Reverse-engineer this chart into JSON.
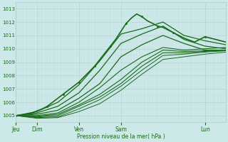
{
  "xlabel": "Pression niveau de la mer( hPa )",
  "bg_color": "#cce8e8",
  "grid_color_major": "#b0cccc",
  "grid_color_minor": "#c4dddd",
  "line_color": "#1a6b1a",
  "tick_label_color": "#1a6b1a",
  "ylim": [
    1004.5,
    1013.5
  ],
  "yticks": [
    1005,
    1006,
    1007,
    1008,
    1009,
    1010,
    1011,
    1012,
    1013
  ],
  "day_labels": [
    "Jeu",
    "Dim",
    "Ven",
    "Sam",
    "Lun"
  ],
  "day_positions": [
    0,
    24,
    72,
    120,
    216
  ],
  "xlim": [
    0,
    240
  ],
  "series": [
    {
      "x": [
        0,
        6,
        12,
        18,
        24,
        30,
        36,
        42,
        48,
        54,
        60,
        66,
        72,
        78,
        84,
        90,
        96,
        102,
        108,
        114,
        120,
        126,
        132,
        138,
        144,
        150,
        156,
        162,
        168,
        174,
        180,
        192,
        204,
        216,
        228,
        240
      ],
      "y": [
        1005.0,
        1005.05,
        1005.1,
        1005.2,
        1005.35,
        1005.5,
        1005.7,
        1006.0,
        1006.3,
        1006.6,
        1006.9,
        1007.2,
        1007.5,
        1007.9,
        1008.3,
        1008.7,
        1009.2,
        1009.7,
        1010.2,
        1010.7,
        1011.3,
        1011.9,
        1012.3,
        1012.6,
        1012.4,
        1012.1,
        1011.9,
        1011.7,
        1011.6,
        1011.4,
        1011.2,
        1010.8,
        1010.5,
        1010.9,
        1010.7,
        1010.5
      ],
      "lw": 1.2,
      "marker": true
    },
    {
      "x": [
        0,
        24,
        48,
        72,
        96,
        120,
        144,
        168,
        192,
        216,
        240
      ],
      "y": [
        1005.0,
        1005.3,
        1006.0,
        1007.3,
        1009.1,
        1011.1,
        1011.5,
        1012.0,
        1011.0,
        1010.6,
        1010.3
      ],
      "lw": 0.9,
      "marker": false
    },
    {
      "x": [
        0,
        24,
        48,
        72,
        96,
        120,
        144,
        168,
        192,
        216,
        240
      ],
      "y": [
        1005.0,
        1005.2,
        1005.7,
        1006.7,
        1008.4,
        1010.4,
        1011.1,
        1011.7,
        1010.7,
        1010.2,
        1010.0
      ],
      "lw": 0.9,
      "marker": false
    },
    {
      "x": [
        0,
        24,
        48,
        72,
        96,
        120,
        144,
        168,
        192,
        216,
        240
      ],
      "y": [
        1005.0,
        1005.1,
        1005.4,
        1006.3,
        1007.4,
        1009.4,
        1010.3,
        1011.0,
        1010.4,
        1009.9,
        1009.9
      ],
      "lw": 0.9,
      "marker": false
    },
    {
      "x": [
        0,
        24,
        48,
        72,
        96,
        120,
        144,
        168,
        192,
        216,
        240
      ],
      "y": [
        1005.0,
        1005.0,
        1005.2,
        1006.0,
        1007.1,
        1008.4,
        1009.4,
        1010.1,
        1009.9,
        1010.0,
        1010.1
      ],
      "lw": 0.8,
      "marker": false
    },
    {
      "x": [
        0,
        24,
        48,
        72,
        96,
        120,
        144,
        168,
        192,
        216,
        240
      ],
      "y": [
        1005.0,
        1004.95,
        1005.1,
        1005.8,
        1006.6,
        1007.7,
        1009.0,
        1009.9,
        1009.8,
        1009.85,
        1009.9
      ],
      "lw": 0.8,
      "marker": false
    },
    {
      "x": [
        0,
        24,
        48,
        72,
        96,
        120,
        144,
        168,
        192,
        216,
        240
      ],
      "y": [
        1005.0,
        1004.9,
        1005.0,
        1005.7,
        1006.4,
        1007.4,
        1008.7,
        1009.7,
        1009.7,
        1009.8,
        1009.9
      ],
      "lw": 0.8,
      "marker": false
    },
    {
      "x": [
        0,
        24,
        48,
        72,
        96,
        120,
        144,
        168,
        192,
        216,
        240
      ],
      "y": [
        1005.0,
        1004.85,
        1004.9,
        1005.5,
        1006.2,
        1007.2,
        1008.4,
        1009.5,
        1009.6,
        1009.75,
        1009.85
      ],
      "lw": 0.7,
      "marker": false
    },
    {
      "x": [
        0,
        24,
        48,
        72,
        96,
        120,
        144,
        168,
        192,
        216,
        240
      ],
      "y": [
        1005.0,
        1004.8,
        1004.85,
        1005.3,
        1005.9,
        1006.9,
        1008.1,
        1009.2,
        1009.4,
        1009.6,
        1009.75
      ],
      "lw": 0.7,
      "marker": false
    }
  ]
}
